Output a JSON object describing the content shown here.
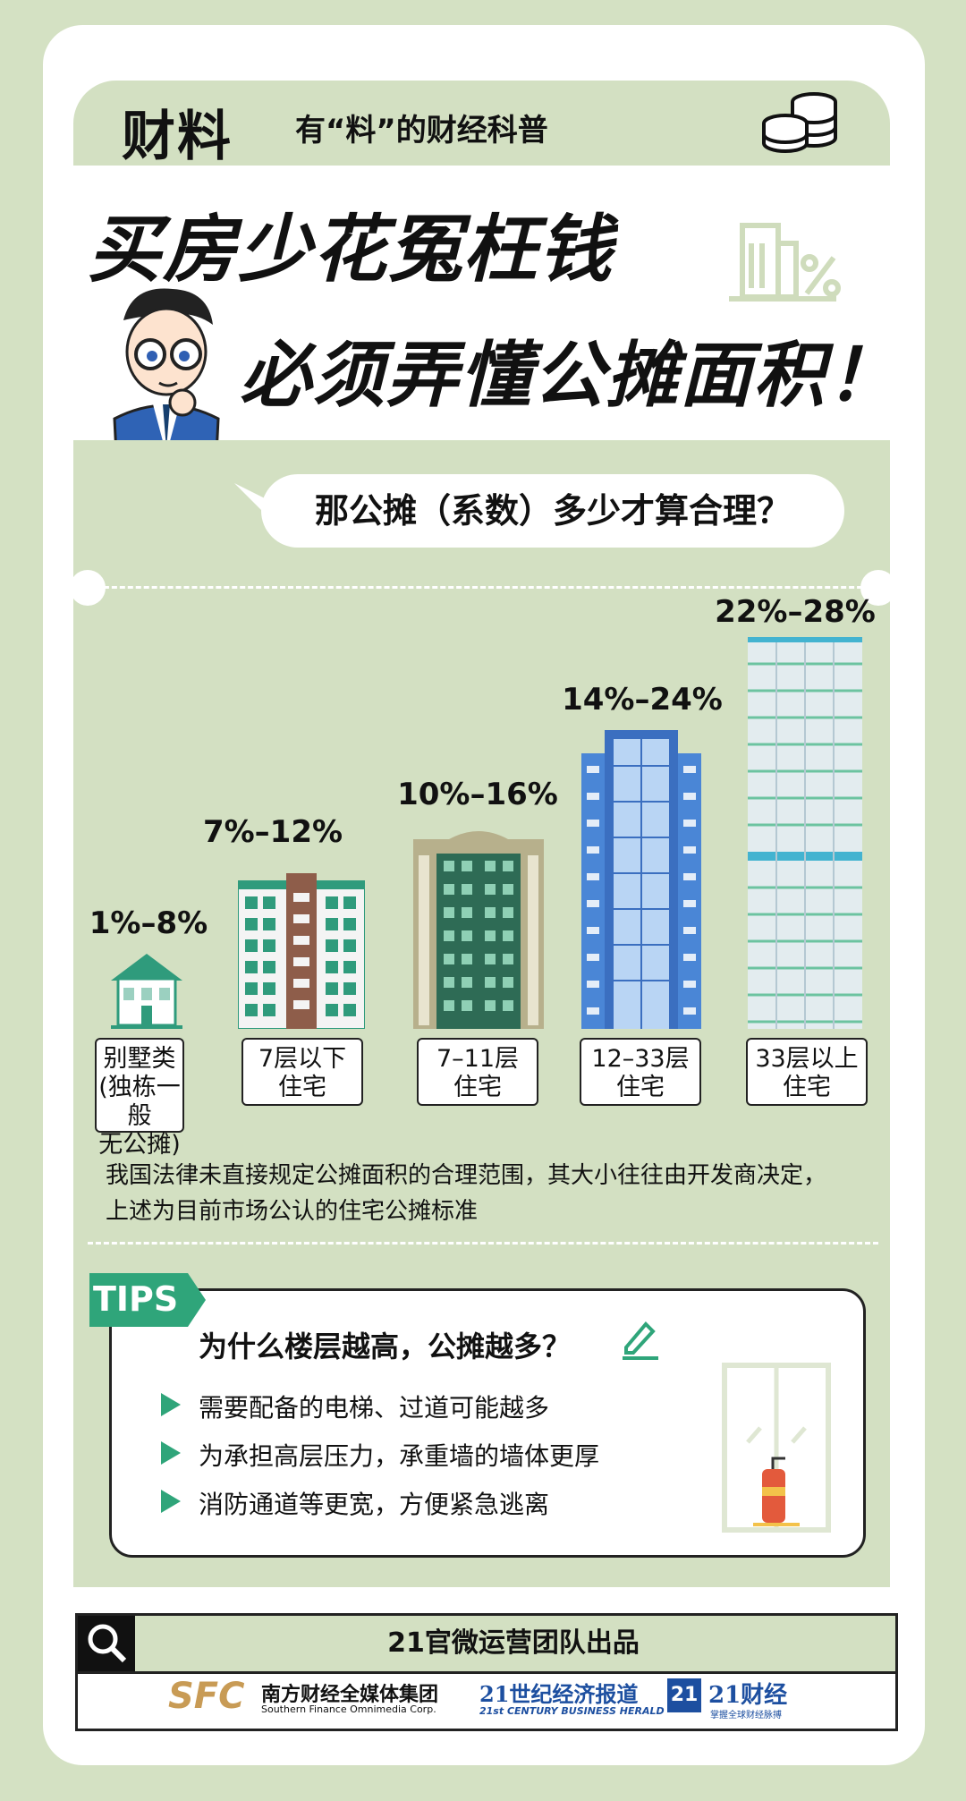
{
  "header": {
    "brand": "财料",
    "tagline": "有“料”的财经科普"
  },
  "title": {
    "line1": "买房少花冤枉钱",
    "line2": "必须弄懂公摊面积！"
  },
  "question": "那公摊（系数）多少才算合理？",
  "buildings": [
    {
      "pct": "1%–8%",
      "label": [
        "别墅类",
        "(独栋一般",
        "无公摊)"
      ]
    },
    {
      "pct": "7%–12%",
      "label": [
        "7层以下",
        "住宅"
      ]
    },
    {
      "pct": "10%–16%",
      "label": [
        "7–11层",
        "住宅"
      ]
    },
    {
      "pct": "14%–24%",
      "label": [
        "12–33层",
        "住宅"
      ]
    },
    {
      "pct": "22%–28%",
      "label": [
        "33层以上",
        "住宅"
      ]
    }
  ],
  "note": {
    "line1": "我国法律未直接规定公摊面积的合理范围，其大小往往由开发商决定，",
    "line2": "上述为目前市场公认的住宅公摊标准"
  },
  "tips": {
    "tag": "TIPS",
    "title": "为什么楼层越高，公摊越多？",
    "items": [
      "需要配备的电梯、过道可能越多",
      "为承担高层压力，承重墙的墙体更厚",
      "消防通道等更宽，方便紧急逃离"
    ]
  },
  "footer": {
    "title": "21官微运营团队出品",
    "logo1": {
      "mark": "SFC",
      "name": "南方财经全媒体集团",
      "sub": "Southern Finance Omnimedia Corp."
    },
    "logo2": {
      "name": "21世纪经济报道",
      "sub": "21st CENTURY BUSINESS HERALD"
    },
    "logo3": {
      "mark": "21",
      "name": "21财经",
      "sub": "掌握全球财经脉搏"
    }
  },
  "colors": {
    "bg": "#d4e1c3",
    "panel": "#d3e0c2",
    "accent": "#2fa57a",
    "blue": "#4a86d6",
    "teal": "#2f9b7c",
    "tan": "#b7b08c"
  }
}
